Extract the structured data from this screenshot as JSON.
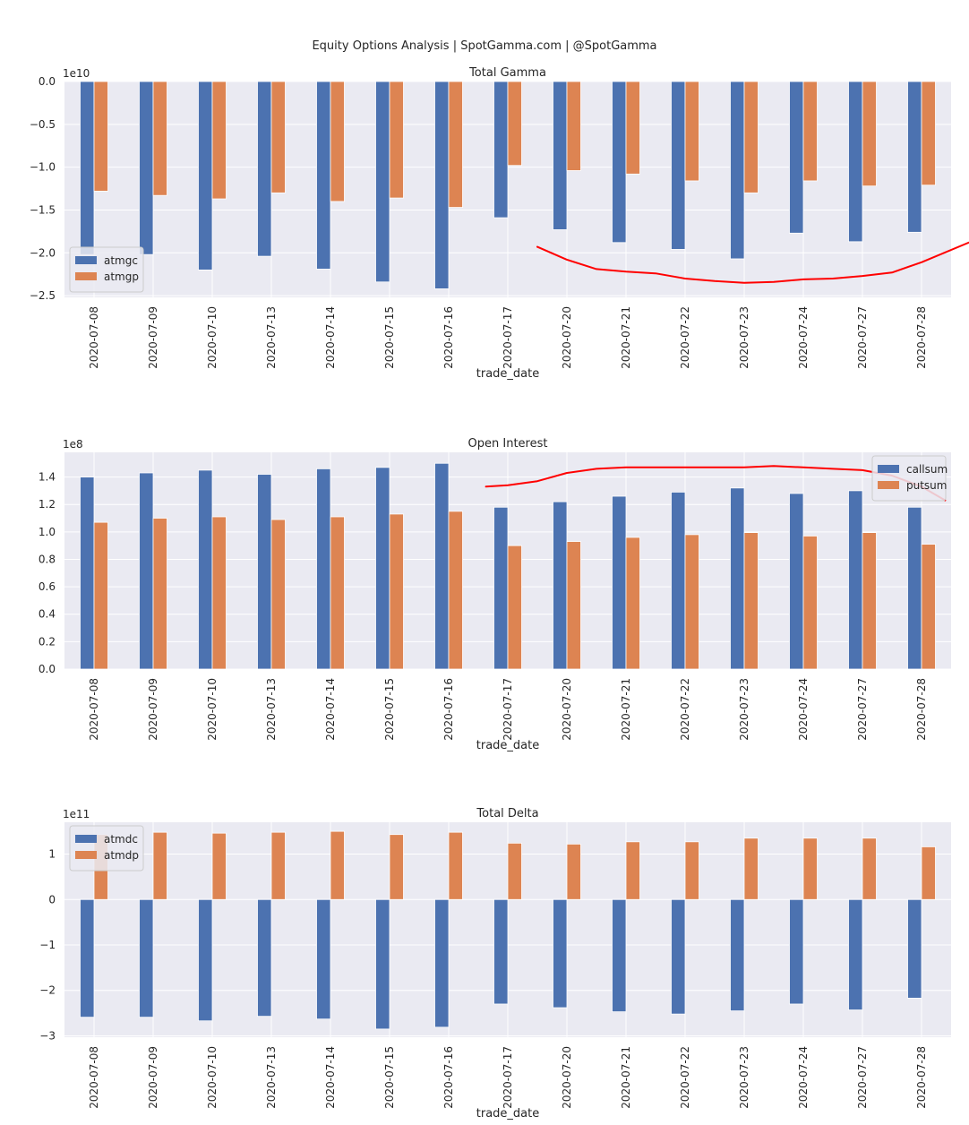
{
  "suptitle": "Equity Options Analysis | SpotGamma.com | @SpotGamma",
  "colors": {
    "c1": "#4c72b0",
    "c2": "#dd8452",
    "bg": "#eaeaf2",
    "grid": "#ffffff",
    "annot": "#ff0000"
  },
  "chart_data": [
    {
      "type": "bar",
      "title": "Total Gamma",
      "xlabel": "trade_date",
      "ylabel": "",
      "offset_label": "1e10",
      "categories": [
        "2020-07-08",
        "2020-07-09",
        "2020-07-10",
        "2020-07-13",
        "2020-07-14",
        "2020-07-15",
        "2020-07-16",
        "2020-07-17",
        "2020-07-20",
        "2020-07-21",
        "2020-07-22",
        "2020-07-23",
        "2020-07-24",
        "2020-07-27",
        "2020-07-28"
      ],
      "series": [
        {
          "name": "atmgc",
          "values": [
            -2.02,
            -2.02,
            -2.2,
            -2.04,
            -2.19,
            -2.34,
            -2.42,
            -1.59,
            -1.73,
            -1.88,
            -1.96,
            -2.07,
            -1.77,
            -1.87,
            -1.76
          ]
        },
        {
          "name": "atmgp",
          "values": [
            -1.28,
            -1.33,
            -1.37,
            -1.3,
            -1.4,
            -1.36,
            -1.47,
            -0.98,
            -1.04,
            -1.08,
            -1.16,
            -1.3,
            -1.16,
            -1.22,
            -1.21
          ]
        }
      ],
      "ylim": [
        -2.52,
        0.0
      ],
      "yticks": [
        0.0,
        -0.5,
        -1.0,
        -1.5,
        -2.0,
        -2.5
      ],
      "ytick_labels": [
        "0.0",
        "−0.5",
        "−1.0",
        "−1.5",
        "−2.0",
        "−2.5"
      ],
      "legend_loc": "lower-left",
      "annotation": {
        "kind": "hand-drawn trend line",
        "x": [
          8,
          8.5,
          9,
          9.5,
          10,
          10.5,
          11,
          11.5,
          12,
          12.5,
          13,
          13.5,
          14,
          14.5,
          15.3
        ],
        "y": [
          -1.93,
          -2.08,
          -2.19,
          -2.22,
          -2.24,
          -2.3,
          -2.33,
          -2.35,
          -2.34,
          -2.31,
          -2.3,
          -2.27,
          -2.23,
          -2.11,
          -1.88
        ]
      }
    },
    {
      "type": "bar",
      "title": "Open Interest",
      "xlabel": "trade_date",
      "ylabel": "",
      "offset_label": "1e8",
      "categories": [
        "2020-07-08",
        "2020-07-09",
        "2020-07-10",
        "2020-07-13",
        "2020-07-14",
        "2020-07-15",
        "2020-07-16",
        "2020-07-17",
        "2020-07-20",
        "2020-07-21",
        "2020-07-22",
        "2020-07-23",
        "2020-07-24",
        "2020-07-27",
        "2020-07-28"
      ],
      "series": [
        {
          "name": "callsum",
          "values": [
            1.4,
            1.43,
            1.45,
            1.42,
            1.46,
            1.47,
            1.5,
            1.18,
            1.22,
            1.26,
            1.29,
            1.32,
            1.28,
            1.3,
            1.18
          ]
        },
        {
          "name": "putsum",
          "values": [
            1.07,
            1.1,
            1.11,
            1.09,
            1.11,
            1.13,
            1.15,
            0.9,
            0.93,
            0.96,
            0.98,
            0.995,
            0.97,
            0.995,
            0.91
          ]
        }
      ],
      "ylim": [
        0.0,
        1.58
      ],
      "yticks": [
        0.0,
        0.2,
        0.4,
        0.6,
        0.8,
        1.0,
        1.2,
        1.4
      ],
      "ytick_labels": [
        "0.0",
        "0.2",
        "0.4",
        "0.6",
        "0.8",
        "1.0",
        "1.2",
        "1.4"
      ],
      "legend_loc": "upper-right",
      "annotation": {
        "kind": "hand-drawn trend line",
        "x": [
          7.13,
          7.5,
          8,
          8.5,
          9,
          9.5,
          10,
          10.5,
          11,
          11.5,
          12,
          12.5,
          13,
          13.5,
          14,
          14.5,
          14.9
        ],
        "y": [
          1.33,
          1.34,
          1.37,
          1.43,
          1.46,
          1.47,
          1.47,
          1.47,
          1.47,
          1.47,
          1.48,
          1.47,
          1.46,
          1.45,
          1.41,
          1.33,
          1.23
        ]
      }
    },
    {
      "type": "bar",
      "title": "Total Delta",
      "xlabel": "trade_date",
      "ylabel": "",
      "offset_label": "1e11",
      "categories": [
        "2020-07-08",
        "2020-07-09",
        "2020-07-10",
        "2020-07-13",
        "2020-07-14",
        "2020-07-15",
        "2020-07-16",
        "2020-07-17",
        "2020-07-20",
        "2020-07-21",
        "2020-07-22",
        "2020-07-23",
        "2020-07-24",
        "2020-07-27",
        "2020-07-28"
      ],
      "series": [
        {
          "name": "atmdc",
          "values": [
            -2.59,
            -2.59,
            -2.67,
            -2.57,
            -2.63,
            -2.85,
            -2.81,
            -2.3,
            -2.38,
            -2.47,
            -2.52,
            -2.45,
            -2.3,
            -2.43,
            -2.17
          ]
        },
        {
          "name": "atmdp",
          "values": [
            1.43,
            1.48,
            1.46,
            1.48,
            1.5,
            1.43,
            1.48,
            1.24,
            1.22,
            1.27,
            1.27,
            1.35,
            1.35,
            1.35,
            1.16
          ]
        }
      ],
      "ylim": [
        -3.03,
        1.7
      ],
      "yticks": [
        1,
        0,
        -1,
        -2,
        -3
      ],
      "ytick_labels": [
        "1",
        "0",
        "−1",
        "−2",
        "−3"
      ],
      "legend_loc": "upper-left"
    }
  ]
}
